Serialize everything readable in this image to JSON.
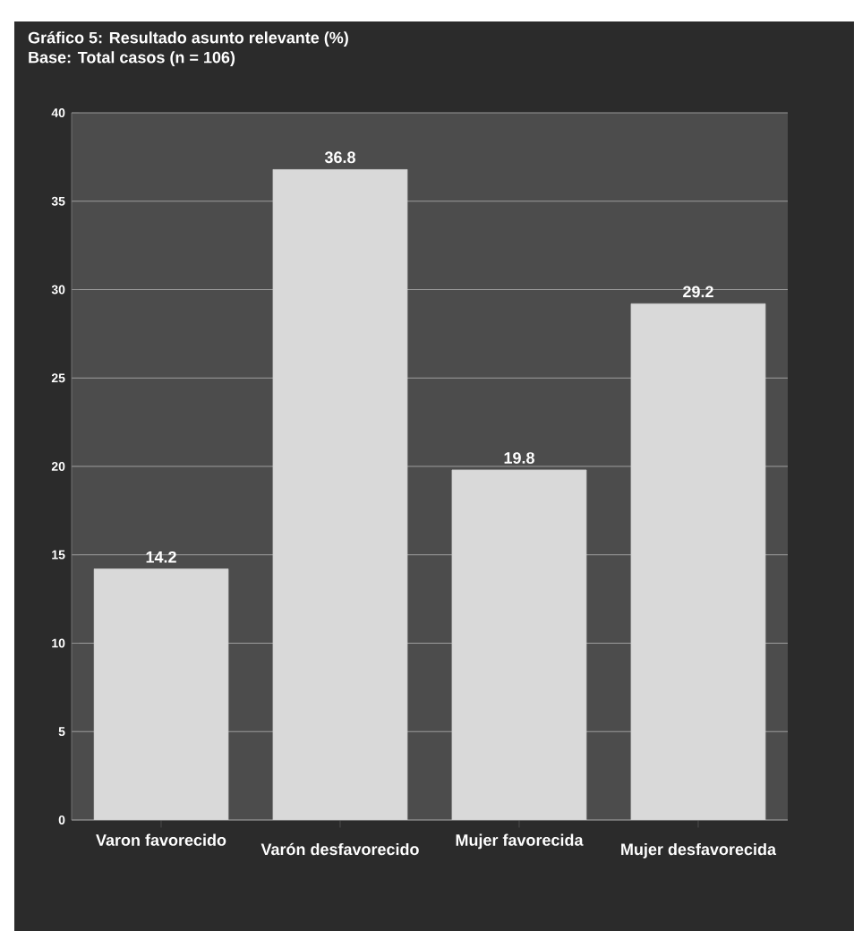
{
  "chart_data": {
    "type": "bar",
    "title": "Gráfico 5: Resultado asunto relevante (%)",
    "subtitle": "Base: Total casos (n = 106)",
    "categories": [
      "Varon favorecido",
      "Varón desfavorecido",
      "Mujer favorecida",
      "Mujer desfavorecida"
    ],
    "values": [
      14.2,
      36.8,
      19.8,
      29.2
    ],
    "color": "#d9d9d9",
    "ylim": [
      0,
      40
    ],
    "yticks": [
      0,
      5,
      10,
      15,
      20,
      25,
      30,
      35,
      40
    ],
    "grid": "y",
    "data_labels": true
  }
}
